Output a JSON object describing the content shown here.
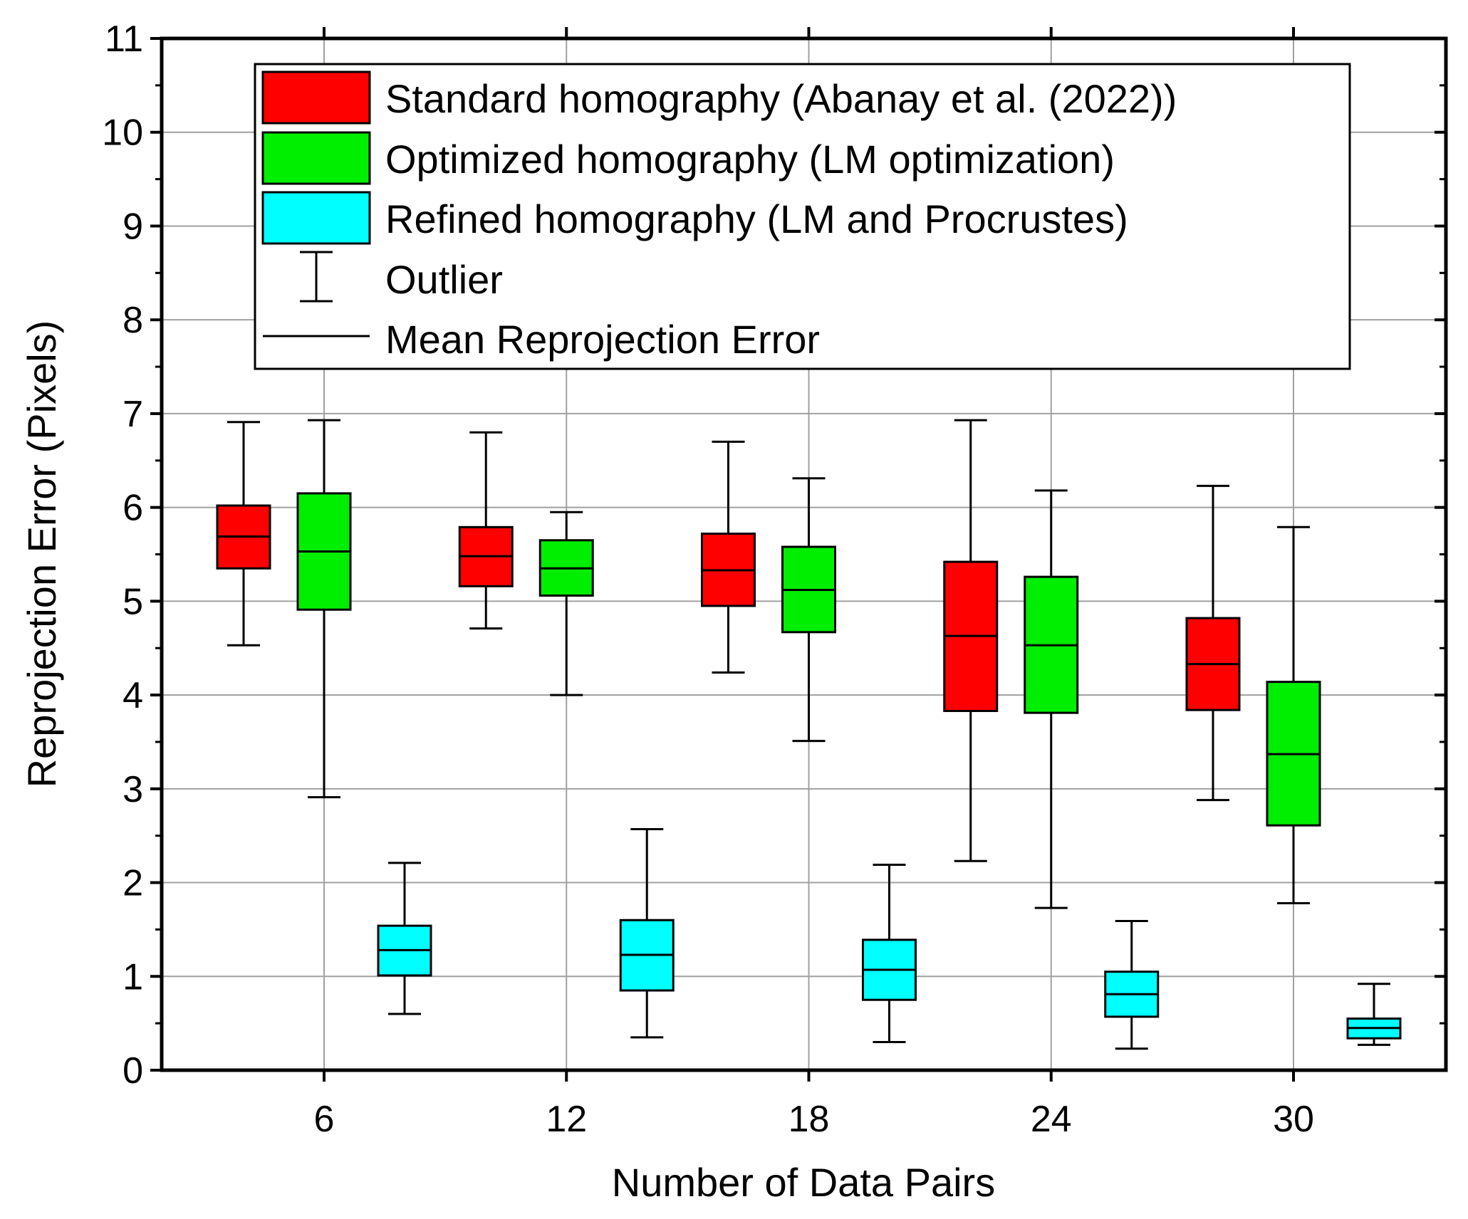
{
  "chart_data": {
    "type": "boxplot",
    "title": "",
    "xlabel": "Number of Data Pairs",
    "ylabel": "Reprojection Error (Pixels)",
    "ylim": [
      0,
      11
    ],
    "yticks": [
      "0",
      "1",
      "2",
      "3",
      "4",
      "5",
      "6",
      "7",
      "8",
      "9",
      "10",
      "11"
    ],
    "categories": [
      "6",
      "12",
      "18",
      "24",
      "30"
    ],
    "grid": true,
    "legend_position": "top-center",
    "series": [
      {
        "name": "Standard homography (Abanay et al. (2022))",
        "color": "#ff0000",
        "boxes": [
          {
            "min": 4.53,
            "q1": 5.35,
            "median": 5.69,
            "q3": 6.02,
            "max": 6.91
          },
          {
            "min": 4.71,
            "q1": 5.16,
            "median": 5.48,
            "q3": 5.79,
            "max": 6.8
          },
          {
            "min": 4.24,
            "q1": 4.95,
            "median": 5.33,
            "q3": 5.72,
            "max": 6.7
          },
          {
            "min": 2.23,
            "q1": 3.83,
            "median": 4.63,
            "q3": 5.42,
            "max": 6.93
          },
          {
            "min": 2.88,
            "q1": 3.84,
            "median": 4.33,
            "q3": 4.82,
            "max": 6.23
          }
        ]
      },
      {
        "name": "Optimized homography (LM optimization)",
        "color": "#00ee00",
        "boxes": [
          {
            "min": 2.91,
            "q1": 4.91,
            "median": 5.53,
            "q3": 6.15,
            "max": 6.93
          },
          {
            "min": 4.0,
            "q1": 5.06,
            "median": 5.35,
            "q3": 5.65,
            "max": 5.95
          },
          {
            "min": 3.51,
            "q1": 4.67,
            "median": 5.12,
            "q3": 5.58,
            "max": 6.31
          },
          {
            "min": 1.73,
            "q1": 3.81,
            "median": 4.53,
            "q3": 5.26,
            "max": 6.18
          },
          {
            "min": 1.78,
            "q1": 2.61,
            "median": 3.37,
            "q3": 4.14,
            "max": 5.79
          }
        ]
      },
      {
        "name": "Refined homography (LM and Procrustes)",
        "color": "#00ffff",
        "boxes": [
          {
            "min": 0.6,
            "q1": 1.01,
            "median": 1.28,
            "q3": 1.54,
            "max": 2.21
          },
          {
            "min": 0.35,
            "q1": 0.85,
            "median": 1.23,
            "q3": 1.6,
            "max": 2.57
          },
          {
            "min": 0.3,
            "q1": 0.75,
            "median": 1.07,
            "q3": 1.39,
            "max": 2.19
          },
          {
            "min": 0.23,
            "q1": 0.57,
            "median": 0.81,
            "q3": 1.05,
            "max": 1.59
          },
          {
            "min": 0.27,
            "q1": 0.34,
            "median": 0.45,
            "q3": 0.55,
            "max": 0.92
          }
        ]
      }
    ],
    "legend": {
      "outlier_label": "Outlier",
      "mean_label": "Mean Reprojection Error"
    }
  }
}
